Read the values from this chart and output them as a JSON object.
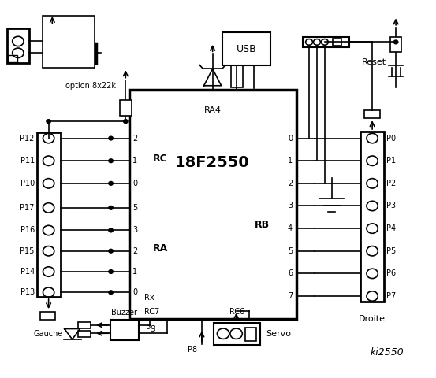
{
  "bg_color": "#ffffff",
  "line_color": "#000000",
  "chip_label": "18F2550",
  "chip_sublabel": "RA4",
  "rc_label": "RC",
  "ra_label": "RA",
  "rb_label": "RB",
  "left_labels": [
    "P12",
    "P11",
    "P10",
    "P17",
    "P16",
    "P15",
    "P14",
    "P13"
  ],
  "right_labels": [
    "P0",
    "P1",
    "P2",
    "P3",
    "P4",
    "P5",
    "P6",
    "P7"
  ],
  "rc_pin_labels": [
    "2",
    "1",
    "0"
  ],
  "ra_pin_labels": [
    "5",
    "3",
    "2",
    "1",
    "0"
  ],
  "rb_pin_labels": [
    "0",
    "1",
    "2",
    "3",
    "4",
    "5",
    "6",
    "7"
  ],
  "gauche_label": "Gauche",
  "droite_label": "Droite",
  "option_label": "option 8x22k",
  "buzzer_label": "Buzzer",
  "usb_label": "USB",
  "reset_label": "Reset",
  "servo_label": "Servo",
  "p8_label": "P8",
  "p9_label": "P9",
  "ki_label": "ki2550",
  "rx_label": "Rx",
  "rc7_label": "RC7",
  "rc6_label": "RC6"
}
